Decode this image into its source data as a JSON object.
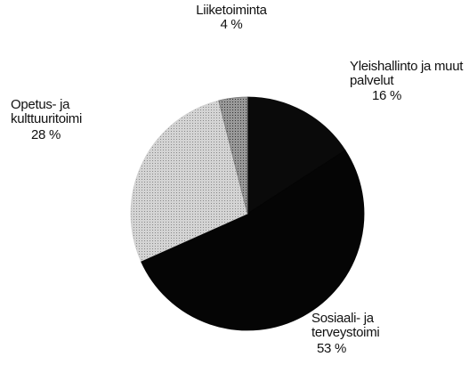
{
  "chart_data": {
    "type": "pie",
    "categories": [
      "Yleishallinto ja muut palvelut",
      "Sosiaali- ja terveystoimi",
      "Opetus- ja kulttuuritoimi",
      "Liiketoiminta"
    ],
    "values": [
      16,
      53,
      28,
      4
    ],
    "value_labels": [
      "16 %",
      "53 %",
      "28 %",
      "4 %"
    ],
    "colors": [
      "#0a0a0a",
      "#050505",
      "#cfcfcf",
      "#7a7a7a"
    ]
  }
}
